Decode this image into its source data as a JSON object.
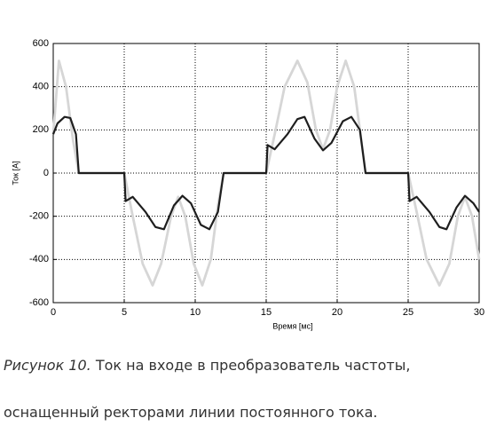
{
  "chart_data": {
    "type": "line",
    "x_label": "Время [мс]",
    "y_label": "Ток [A]",
    "xlim": [
      0,
      30
    ],
    "xticks": [
      0,
      5,
      10,
      15,
      20,
      25,
      30
    ],
    "ylim": [
      -600,
      600
    ],
    "yticks": [
      -600,
      -400,
      -200,
      0,
      200,
      400,
      600
    ],
    "grid": true,
    "series": [
      {
        "color": "#d6d6d6",
        "x": [
          0,
          0.4,
          0.9,
          1.4,
          1.8,
          5,
          5.6,
          6.3,
          7,
          7.6,
          8.3,
          8.8,
          9.3,
          9.9,
          10.5,
          11.1,
          11.6,
          12,
          15,
          15.6,
          16.3,
          17.2,
          17.9,
          18.5,
          19,
          19.5,
          20,
          20.6,
          21.2,
          21.7,
          22,
          25,
          25.6,
          26.3,
          27.2,
          27.9,
          28.5,
          29,
          29.5,
          30
        ],
        "values": [
          180,
          520,
          400,
          150,
          0,
          0,
          -200,
          -420,
          -520,
          -420,
          -200,
          -110,
          -200,
          -420,
          -520,
          -400,
          -150,
          0,
          0,
          180,
          400,
          520,
          420,
          200,
          110,
          200,
          400,
          520,
          400,
          150,
          0,
          0,
          -180,
          -400,
          -520,
          -420,
          -200,
          -110,
          -200,
          -400
        ]
      },
      {
        "color": "#1e1e1e",
        "x": [
          0,
          0.3,
          0.8,
          1.2,
          1.6,
          1.8,
          5,
          5.1,
          5.6,
          6.5,
          7.2,
          7.8,
          8.5,
          9.1,
          9.7,
          10.4,
          11,
          11.6,
          12,
          15,
          15.1,
          15.6,
          16.5,
          17.2,
          17.7,
          18.4,
          19,
          19.6,
          20.4,
          21,
          21.6,
          22,
          25,
          25.1,
          25.6,
          26.5,
          27.2,
          27.7,
          28.4,
          29,
          29.6,
          30
        ],
        "values": [
          180,
          230,
          260,
          255,
          180,
          0,
          0,
          -130,
          -110,
          -180,
          -250,
          -260,
          -150,
          -105,
          -140,
          -240,
          -260,
          -180,
          0,
          0,
          130,
          110,
          180,
          250,
          260,
          160,
          105,
          140,
          240,
          260,
          200,
          0,
          0,
          -130,
          -110,
          -180,
          -250,
          -260,
          -160,
          -105,
          -140,
          -180
        ]
      }
    ]
  },
  "caption": {
    "label": "Рисунок 10.",
    "line1": "Ток на входе в преобразователь частоты,",
    "line2": "оснащенный ректорами линии постоянного тока."
  }
}
